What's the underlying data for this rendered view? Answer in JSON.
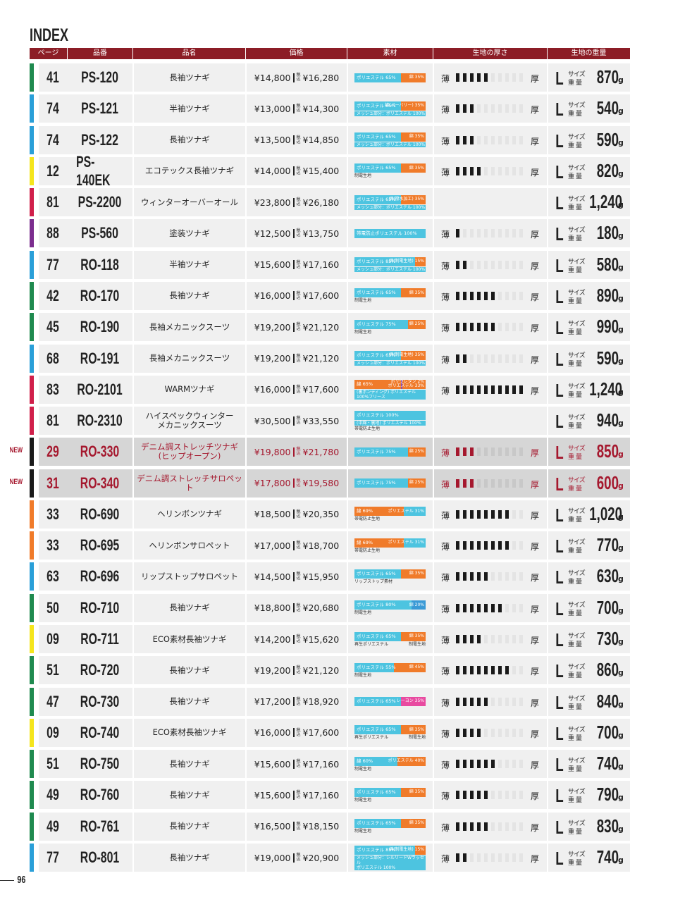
{
  "header": {
    "title": "INDEX",
    "columns": [
      "ページ",
      "品番",
      "品名",
      "価格",
      "素材",
      "生地の厚さ",
      "生地の重量"
    ]
  },
  "labels": {
    "tax": "税込",
    "thin": "薄",
    "thick": "厚",
    "size": "L",
    "size_label": "サイズ",
    "weight_label": "重量",
    "unit": "g"
  },
  "thickness_range": [
    0,
    10
  ],
  "rows": [
    {
      "page": "41",
      "code": "PS-120",
      "name": "長袖ツナギ",
      "price": "¥14,800",
      "tax_price": "¥16,280",
      "color": "#1f8a4f",
      "materials": [
        {
          "label": "ポリエステル 65%",
          "pct": 65,
          "color": "#4dc4e0"
        },
        {
          "label": "綿 35%",
          "pct": 35,
          "color": "#f07b2a"
        }
      ],
      "thickness": 5,
      "weight": "870"
    },
    {
      "page": "74",
      "code": "PS-121",
      "name": "半袖ツナギ",
      "price": "¥13,000",
      "tax_price": "¥14,300",
      "color": "#2a9fd8",
      "materials": [
        {
          "label": "ポリエステル 65%",
          "pct": 65,
          "color": "#4dc4e0"
        },
        {
          "label": "綿(バーバリー) 35%",
          "pct": 35,
          "color": "#f07b2a"
        }
      ],
      "sub": "メッシュ部分：ポリエステル 100%",
      "thickness": 3,
      "weight": "540"
    },
    {
      "page": "74",
      "code": "PS-122",
      "name": "長袖ツナギ",
      "price": "¥13,500",
      "tax_price": "¥14,850",
      "color": "#2a9fd8",
      "materials": [
        {
          "label": "ポリエステル 65%",
          "pct": 65,
          "color": "#4dc4e0"
        },
        {
          "label": "綿 35%",
          "pct": 35,
          "color": "#f07b2a"
        }
      ],
      "sub": "メッシュ部分：ポリエステル 100%",
      "thickness": 3,
      "weight": "590"
    },
    {
      "page": "12",
      "code": "PS-140EK",
      "name": "エコテックス長袖ツナギ",
      "price": "¥14,000",
      "tax_price": "¥15,400",
      "color": "#f5e51c",
      "materials": [
        {
          "label": "ポリエステル 65%",
          "pct": 65,
          "color": "#4dc4e0"
        },
        {
          "label": "綿 35%",
          "pct": 35,
          "color": "#f07b2a"
        }
      ],
      "notes": [
        "制電生地"
      ],
      "thickness": 4,
      "weight": "820"
    },
    {
      "page": "81",
      "code": "PS-2200",
      "name": "ウィンターオーバーオール",
      "price": "¥23,800",
      "tax_price": "¥26,180",
      "color": "#d01f4a",
      "materials": [
        {
          "label": "ポリエステル 65%",
          "pct": 65,
          "color": "#4dc4e0"
        },
        {
          "label": "綿(撥水加工) 35%",
          "pct": 35,
          "color": "#f07b2a"
        }
      ],
      "sub": "メッシュ部分：ポリエステル 100%",
      "thickness": null,
      "weight": "1,240"
    },
    {
      "page": "88",
      "code": "PS-560",
      "name": "塗装ツナギ",
      "price": "¥12,500",
      "tax_price": "¥13,750",
      "color": "#7b2d8e",
      "materials": [
        {
          "label": "帯電防止ポリエステル 100%",
          "pct": 100,
          "color": "#4dc4e0"
        }
      ],
      "thickness": 1,
      "weight": "180"
    },
    {
      "page": "77",
      "code": "RO-118",
      "name": "半袖ツナギ",
      "price": "¥15,600",
      "tax_price": "¥17,160",
      "color": "#2a9fd8",
      "materials": [
        {
          "label": "ポリエステル 85%",
          "pct": 85,
          "color": "#4dc4e0"
        },
        {
          "label": "綿(制電生地) 15%",
          "pct": 15,
          "color": "#f07b2a"
        }
      ],
      "sub": "メッシュ部分：ポリエステル 100%",
      "thickness": 2,
      "weight": "580"
    },
    {
      "page": "42",
      "code": "RO-170",
      "name": "長袖ツナギ",
      "price": "¥16,000",
      "tax_price": "¥17,600",
      "color": "#1f8a4f",
      "materials": [
        {
          "label": "ポリエステル 65%",
          "pct": 65,
          "color": "#4dc4e0"
        },
        {
          "label": "綿 35%",
          "pct": 35,
          "color": "#f07b2a"
        }
      ],
      "notes": [
        "制電生地"
      ],
      "thickness": 6,
      "weight": "890"
    },
    {
      "page": "45",
      "code": "RO-190",
      "name": "長袖メカニックスーツ",
      "price": "¥19,200",
      "tax_price": "¥21,120",
      "color": "#1f8a4f",
      "materials": [
        {
          "label": "ポリエステル 75%",
          "pct": 75,
          "color": "#4dc4e0"
        },
        {
          "label": "綿 25%",
          "pct": 25,
          "color": "#f07b2a"
        }
      ],
      "notes": [
        "制電生地"
      ],
      "thickness": 6,
      "weight": "990"
    },
    {
      "page": "68",
      "code": "RO-191",
      "name": "長袖メカニックスーツ",
      "price": "¥19,200",
      "tax_price": "¥21,120",
      "color": "#2a9fd8",
      "materials": [
        {
          "label": "ポリエステル 65%",
          "pct": 65,
          "color": "#4dc4e0"
        },
        {
          "label": "綿(制電生地) 35%",
          "pct": 35,
          "color": "#f07b2a"
        }
      ],
      "sub": "メッシュ部分：ポリエステル 100%",
      "thickness": 2,
      "weight": "590"
    },
    {
      "page": "83",
      "code": "RO-2101",
      "name": "WARMツナギ",
      "price": "¥16,000",
      "tax_price": "¥17,600",
      "color": "#d01f4a",
      "materials": [
        {
          "label": "綿 65%",
          "pct": 65,
          "color": "#f07b2a"
        },
        {
          "label": "ポリウレタン 2%",
          "pct": 2,
          "color": "#8c4fb0"
        },
        {
          "label": "ポリエステル 33%",
          "pct": 33,
          "color": "#f07b2a"
        }
      ],
      "sub": "(裏ボンディング) ポリエステル 100%フリース",
      "thickness": 10,
      "weight": "1,240"
    },
    {
      "page": "81",
      "code": "RO-2310",
      "name": "ハイスペックウィンター\nメカニックスーツ",
      "price": "¥30,500",
      "tax_price": "¥33,550",
      "color": "#d01f4a",
      "materials": [
        {
          "label": "ポリエステル 100%",
          "pct": 100,
          "color": "#4dc4e0"
        }
      ],
      "sub": "(中綿・裏地) ポリエステル 100%",
      "notes": [
        "帯電防止生地"
      ],
      "thickness": null,
      "weight": "940"
    },
    {
      "new": "NEW",
      "page": "29",
      "code": "RO-330",
      "name": "デニム調ストレッチツナギ\n(ヒップオープン)",
      "price": "¥19,800",
      "tax_price": "¥21,780",
      "color": "#1a1a1a",
      "materials": [
        {
          "label": "ポリエステル 75%",
          "pct": 75,
          "color": "#4dc4e0"
        },
        {
          "label": "綿 25%",
          "pct": 25,
          "color": "#f07b2a"
        }
      ],
      "thickness": 3,
      "weight": "850"
    },
    {
      "new": "NEW",
      "page": "31",
      "code": "RO-340",
      "name": "デニム調ストレッチサロペット",
      "price": "¥17,800",
      "tax_price": "¥19,580",
      "color": "#1a1a1a",
      "materials": [
        {
          "label": "ポリエステル 75%",
          "pct": 75,
          "color": "#4dc4e0"
        },
        {
          "label": "綿 25%",
          "pct": 25,
          "color": "#f07b2a"
        }
      ],
      "thickness": 3,
      "weight": "600"
    },
    {
      "page": "33",
      "code": "RO-690",
      "name": "ヘリンボンツナギ",
      "price": "¥18,500",
      "tax_price": "¥20,350",
      "color": "#f07b2a",
      "materials": [
        {
          "label": "綿 69%",
          "pct": 69,
          "color": "#f07b2a"
        },
        {
          "label": "ポリエステル 31%",
          "pct": 31,
          "color": "#4dc4e0"
        }
      ],
      "notes": [
        "帯電防止生地"
      ],
      "thickness": 8,
      "weight": "1,020"
    },
    {
      "page": "33",
      "code": "RO-695",
      "name": "ヘリンボンサロペット",
      "price": "¥17,000",
      "tax_price": "¥18,700",
      "color": "#f07b2a",
      "materials": [
        {
          "label": "綿 69%",
          "pct": 69,
          "color": "#f07b2a"
        },
        {
          "label": "ポリエステル 31%",
          "pct": 31,
          "color": "#4dc4e0"
        }
      ],
      "notes": [
        "帯電防止生地"
      ],
      "thickness": 8,
      "weight": "770"
    },
    {
      "page": "63",
      "code": "RO-696",
      "name": "リップストップサロペット",
      "price": "¥14,500",
      "tax_price": "¥15,950",
      "color": "#2a9fd8",
      "materials": [
        {
          "label": "ポリエステル 65%",
          "pct": 65,
          "color": "#4dc4e0"
        },
        {
          "label": "綿 35%",
          "pct": 35,
          "color": "#f07b2a"
        }
      ],
      "notes": [
        "リップストップ素材"
      ],
      "thickness": 5,
      "weight": "630"
    },
    {
      "page": "50",
      "code": "RO-710",
      "name": "長袖ツナギ",
      "price": "¥18,800",
      "tax_price": "¥20,680",
      "color": "#1f8a4f",
      "materials": [
        {
          "label": "ポリエステル 80%",
          "pct": 80,
          "color": "#4dc4e0"
        },
        {
          "label": "綿 20%",
          "pct": 20,
          "color": "#3a9ad6"
        }
      ],
      "notes": [
        "制電生地"
      ],
      "thickness": 7,
      "weight": "700"
    },
    {
      "page": "09",
      "code": "RO-711",
      "name": "ECO素材長袖ツナギ",
      "price": "¥14,200",
      "tax_price": "¥15,620",
      "color": "#f5e51c",
      "materials": [
        {
          "label": "ポリエステル 65%",
          "pct": 65,
          "color": "#4dc4e0"
        },
        {
          "label": "綿 35%",
          "pct": 35,
          "color": "#f07b2a"
        }
      ],
      "notes": [
        "再生ポリエステル",
        "制電生地"
      ],
      "thickness": 4,
      "weight": "730"
    },
    {
      "page": "51",
      "code": "RO-720",
      "name": "長袖ツナギ",
      "price": "¥19,200",
      "tax_price": "¥21,120",
      "color": "#1f8a4f",
      "materials": [
        {
          "label": "ポリエステル 55%",
          "pct": 55,
          "color": "#4dc4e0"
        },
        {
          "label": "綿 45%",
          "pct": 45,
          "color": "#f07b2a"
        }
      ],
      "notes": [
        "制電生地"
      ],
      "thickness": 8,
      "weight": "860"
    },
    {
      "page": "47",
      "code": "RO-730",
      "name": "長袖ツナギ",
      "price": "¥17,200",
      "tax_price": "¥18,920",
      "color": "#1f8a4f",
      "materials": [
        {
          "label": "ポリエステル 65%",
          "pct": 65,
          "color": "#4dc4e0"
        },
        {
          "label": "レーヨン 35%",
          "pct": 35,
          "color": "#e84aa0"
        }
      ],
      "thickness": 5,
      "weight": "840"
    },
    {
      "page": "09",
      "code": "RO-740",
      "name": "ECO素材長袖ツナギ",
      "price": "¥16,000",
      "tax_price": "¥17,600",
      "color": "#f5e51c",
      "materials": [
        {
          "label": "ポリエステル 65%",
          "pct": 65,
          "color": "#4dc4e0"
        },
        {
          "label": "綿 35%",
          "pct": 35,
          "color": "#f07b2a"
        }
      ],
      "notes": [
        "再生ポリエステル",
        "制電生地"
      ],
      "thickness": 4,
      "weight": "700"
    },
    {
      "page": "51",
      "code": "RO-750",
      "name": "長袖ツナギ",
      "price": "¥15,600",
      "tax_price": "¥17,160",
      "color": "#1f8a4f",
      "materials": [
        {
          "label": "綿 60%",
          "pct": 60,
          "color": "#4dc4e0"
        },
        {
          "label": "ポリエステル 40%",
          "pct": 40,
          "color": "#f07b2a"
        }
      ],
      "notes": [
        "制電生地"
      ],
      "thickness": 6,
      "weight": "740"
    },
    {
      "page": "49",
      "code": "RO-760",
      "name": "長袖ツナギ",
      "price": "¥15,600",
      "tax_price": "¥17,160",
      "color": "#1f8a4f",
      "materials": [
        {
          "label": "ポリエステル 65%",
          "pct": 65,
          "color": "#4dc4e0"
        },
        {
          "label": "綿 35%",
          "pct": 35,
          "color": "#f07b2a"
        }
      ],
      "notes": [
        "制電生地"
      ],
      "thickness": 5,
      "weight": "790"
    },
    {
      "page": "49",
      "code": "RO-761",
      "name": "長袖ツナギ",
      "price": "¥16,500",
      "tax_price": "¥18,150",
      "color": "#1f8a4f",
      "materials": [
        {
          "label": "ポリエステル 65%",
          "pct": 65,
          "color": "#4dc4e0"
        },
        {
          "label": "綿 35%",
          "pct": 35,
          "color": "#f07b2a"
        }
      ],
      "notes": [
        "制電生地"
      ],
      "thickness": 5,
      "weight": "830"
    },
    {
      "page": "77",
      "code": "RO-801",
      "name": "長袖ツナギ",
      "price": "¥19,000",
      "tax_price": "¥20,900",
      "color": "#2a9fd8",
      "materials": [
        {
          "label": "ポリエステル 85%",
          "pct": 85,
          "color": "#4dc4e0"
        },
        {
          "label": "綿(制電生地) 15%",
          "pct": 15,
          "color": "#f07b2a"
        }
      ],
      "sub": "メッシュ部分：シルリードWラッセル\nポリエステル 100%",
      "thickness": 2,
      "weight": "740"
    }
  ],
  "footer": {
    "page_number": "96"
  }
}
